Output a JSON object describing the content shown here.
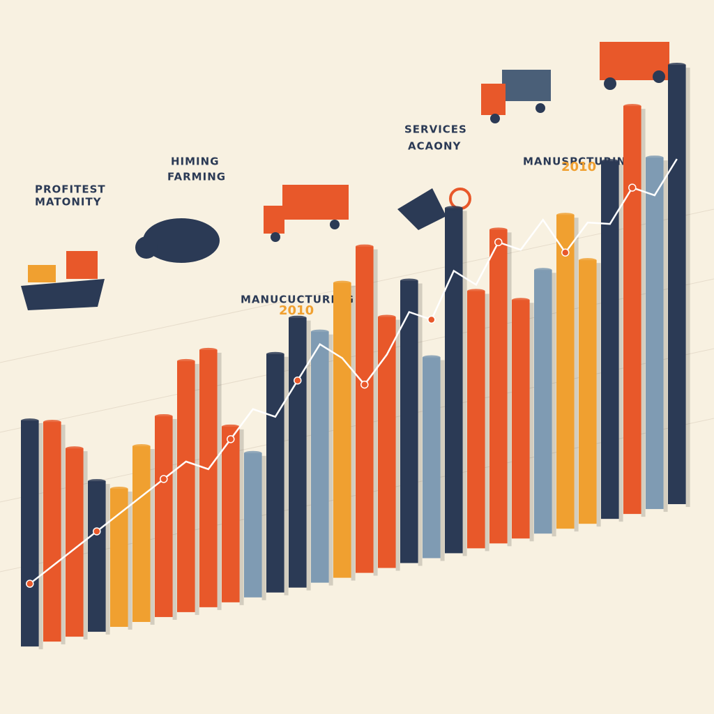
{
  "chart_data": {
    "type": "bar",
    "annotations": [
      "PROFITEST",
      "MATONITY",
      "HIMING",
      "FARMING",
      "SERVICES",
      "ACAONY",
      "MANUSPCTURING",
      "2010",
      "MANUCUCTURING",
      "2010"
    ],
    "categories": [
      null,
      null,
      null,
      null,
      null,
      null,
      null,
      null,
      null,
      null,
      null,
      null,
      null,
      null,
      null,
      null,
      null,
      null,
      null,
      null,
      null,
      null,
      null,
      null,
      null,
      null,
      null,
      null,
      null,
      null
    ],
    "values": [
      36,
      35,
      30,
      24,
      22,
      28,
      32,
      40,
      41,
      28,
      23,
      38,
      43,
      40,
      47,
      52,
      40,
      45,
      32,
      55,
      41,
      50,
      38,
      42,
      50,
      42,
      57,
      65,
      56,
      70
    ],
    "colors": [
      "#2b3a55",
      "#e8582a",
      "#e8582a",
      "#2b3a55",
      "#f0a030",
      "#f0a030",
      "#e8582a",
      "#e8582a",
      "#e8582a",
      "#e8582a",
      "#7f9bb3",
      "#2b3a55",
      "#2b3a55",
      "#7f9bb3",
      "#f0a030",
      "#e8582a",
      "#e8582a",
      "#2b3a55",
      "#7f9bb3",
      "#2b3a55",
      "#e8582a",
      "#e8582a",
      "#e8582a",
      "#7f9bb3",
      "#f0a030",
      "#f0a030",
      "#2b3a55",
      "#e8582a",
      "#7f9bb3",
      "#2b3a55"
    ],
    "line": [
      10,
      12,
      14,
      16,
      18,
      20,
      22,
      24,
      22,
      26,
      30,
      28,
      33,
      38,
      35,
      30,
      34,
      40,
      38,
      45,
      42,
      48,
      46,
      50,
      44,
      48,
      47,
      52,
      50,
      55
    ],
    "ylim": [
      0,
      80
    ]
  }
}
